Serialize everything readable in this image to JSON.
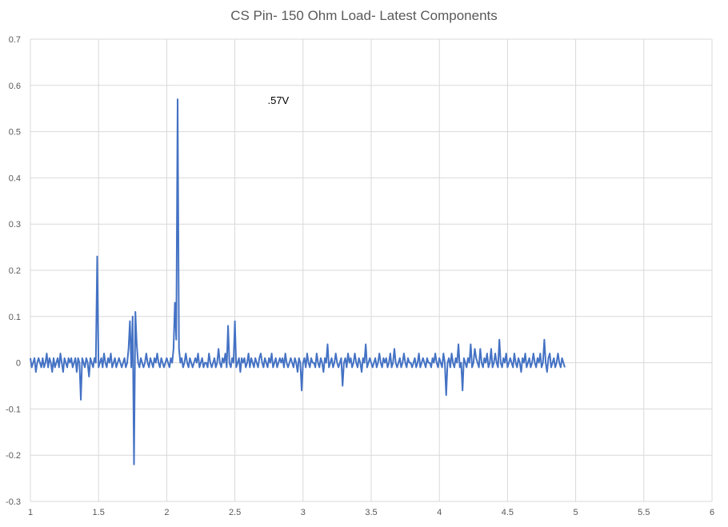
{
  "chart_data": {
    "type": "line",
    "title": "CS Pin- 150 Ohm Load- Latest Components",
    "xlabel": "",
    "ylabel": "",
    "xlim": [
      1,
      6
    ],
    "ylim": [
      -0.3,
      0.7
    ],
    "x_ticks": [
      1,
      1.5,
      2,
      2.5,
      3,
      3.5,
      4,
      4.5,
      5,
      5.5,
      6
    ],
    "x_tick_labels": [
      "1",
      "1.5",
      "2",
      "2.5",
      "3",
      "3.5",
      "4",
      "4.5",
      "5",
      "5.5",
      "6"
    ],
    "y_ticks": [
      -0.3,
      -0.2,
      -0.1,
      0,
      0.1,
      0.2,
      0.3,
      0.4,
      0.5,
      0.6,
      0.7
    ],
    "y_tick_labels": [
      "-0.3",
      "-0.2",
      "-0.1",
      "0",
      "0.1",
      "0.2",
      "0.3",
      "0.4",
      "0.5",
      "0.6",
      "0.7"
    ],
    "grid": true,
    "legend": "none",
    "colors": {
      "series": "#4472C4",
      "grid": "#d9d9d9",
      "text": "#595959"
    },
    "annotations": [
      {
        "text": ".57V",
        "x": 2.74,
        "y": 0.56
      }
    ],
    "series": [
      {
        "name": "",
        "x_start": 1.0,
        "x_step": 0.01,
        "values": [
          0.01,
          -0.01,
          0.0,
          0.01,
          -0.02,
          0.0,
          0.01,
          0.0,
          -0.01,
          0.01,
          -0.01,
          0.0,
          0.02,
          -0.01,
          0.01,
          0.0,
          -0.02,
          0.01,
          -0.01,
          0.0,
          0.01,
          -0.01,
          0.02,
          0.0,
          -0.02,
          0.01,
          0.0,
          -0.01,
          0.01,
          0.0,
          0.01,
          -0.01,
          0.0,
          0.01,
          -0.02,
          0.01,
          0.0,
          -0.08,
          0.01,
          0.0,
          -0.01,
          0.01,
          0.0,
          -0.03,
          0.01,
          0.0,
          -0.01,
          0.01,
          0.0,
          0.23,
          -0.01,
          0.0,
          0.01,
          -0.01,
          0.02,
          0.0,
          -0.01,
          0.01,
          0.0,
          0.02,
          -0.01,
          0.0,
          0.01,
          -0.01,
          0.0,
          0.01,
          0.0,
          -0.01,
          0.0,
          0.01,
          -0.01,
          0.0,
          0.03,
          0.09,
          -0.01,
          0.1,
          -0.22,
          0.11,
          0.04,
          0.0,
          -0.01,
          0.01,
          0.0,
          -0.01,
          0.0,
          0.02,
          0.0,
          -0.01,
          0.01,
          0.0,
          -0.01,
          0.01,
          0.0,
          0.02,
          0.0,
          -0.01,
          0.01,
          0.0,
          -0.01,
          0.0,
          0.01,
          0.0,
          -0.01,
          0.01,
          0.0,
          0.03,
          0.13,
          0.05,
          0.57,
          0.03,
          0.0,
          0.01,
          -0.01,
          0.0,
          0.02,
          0.0,
          -0.01,
          0.01,
          0.0,
          -0.01,
          0.0,
          0.01,
          0.0,
          0.02,
          -0.01,
          0.0,
          0.01,
          -0.01,
          0.0,
          0.0,
          -0.01,
          0.02,
          0.0,
          -0.01,
          0.0,
          0.01,
          -0.01,
          0.0,
          0.03,
          0.0,
          -0.01,
          0.01,
          0.0,
          0.02,
          -0.01,
          0.08,
          0.0,
          -0.01,
          0.01,
          0.0,
          0.09,
          -0.01,
          0.0,
          0.01,
          -0.02,
          0.01,
          0.0,
          0.01,
          -0.01,
          0.0,
          0.02,
          -0.01,
          0.01,
          0.0,
          -0.01,
          0.01,
          0.0,
          -0.01,
          0.01,
          0.02,
          0.0,
          -0.01,
          0.01,
          0.0,
          -0.01,
          0.01,
          0.0,
          0.02,
          -0.01,
          0.0,
          0.01,
          -0.01,
          0.0,
          0.01,
          0.0,
          0.01,
          -0.01,
          0.02,
          0.0,
          -0.01,
          0.0,
          0.01,
          0.0,
          -0.01,
          0.01,
          0.0,
          -0.02,
          0.01,
          0.0,
          -0.06,
          0.0,
          0.01,
          -0.01,
          0.02,
          0.0,
          -0.01,
          0.01,
          0.0,
          0.0,
          -0.01,
          0.02,
          0.0,
          -0.01,
          0.01,
          0.0,
          -0.02,
          0.01,
          0.0,
          0.04,
          -0.01,
          0.0,
          0.01,
          -0.01,
          0.0,
          0.02,
          0.0,
          -0.01,
          0.0,
          0.01,
          -0.05,
          0.0,
          0.01,
          -0.01,
          0.02,
          0.0,
          0.01,
          -0.01,
          0.0,
          0.02,
          0.0,
          -0.01,
          0.01,
          0.0,
          -0.02,
          0.01,
          0.0,
          0.04,
          -0.01,
          0.0,
          0.01,
          0.0,
          -0.01,
          0.0,
          0.01,
          -0.01,
          0.0,
          0.02,
          0.0,
          -0.01,
          0.01,
          0.0,
          0.01,
          -0.01,
          0.0,
          0.02,
          -0.01,
          0.0,
          0.03,
          0.0,
          -0.01,
          0.0,
          0.01,
          -0.01,
          0.0,
          0.02,
          0.0,
          -0.01,
          0.01,
          0.0,
          0.0,
          -0.01,
          0.0,
          0.01,
          -0.01,
          0.0,
          0.02,
          -0.01,
          0.0,
          0.01,
          0.0,
          -0.01,
          0.01,
          0.0,
          0.0,
          -0.01,
          0.01,
          0.0,
          0.02,
          0.0,
          -0.01,
          0.01,
          0.0,
          -0.01,
          0.02,
          0.0,
          -0.07,
          0.0,
          0.01,
          -0.01,
          0.02,
          0.0,
          -0.01,
          0.01,
          0.0,
          0.04,
          -0.01,
          0.0,
          -0.06,
          0.01,
          0.0,
          -0.01,
          0.01,
          0.0,
          0.04,
          -0.01,
          0.0,
          0.03,
          0.01,
          0.0,
          -0.01,
          0.03,
          0.0,
          -0.01,
          0.01,
          0.0,
          0.02,
          -0.01,
          0.0,
          0.03,
          -0.01,
          0.0,
          0.02,
          0.0,
          -0.01,
          0.05,
          0.0,
          -0.01,
          0.01,
          0.0,
          0.02,
          -0.01,
          0.0,
          0.01,
          0.0,
          -0.01,
          0.02,
          0.0,
          -0.01,
          0.01,
          0.0,
          -0.02,
          0.01,
          0.0,
          0.02,
          -0.01,
          0.0,
          0.01,
          -0.01,
          0.0,
          0.02,
          0.0,
          -0.01,
          0.01,
          0.0,
          0.02,
          -0.01,
          0.0,
          0.05,
          0.0,
          -0.02,
          0.01,
          0.02,
          -0.01,
          0.0,
          0.01,
          -0.01,
          0.0,
          0.02,
          0.0,
          -0.01,
          0.01,
          0.0,
          -0.01
        ]
      }
    ]
  }
}
